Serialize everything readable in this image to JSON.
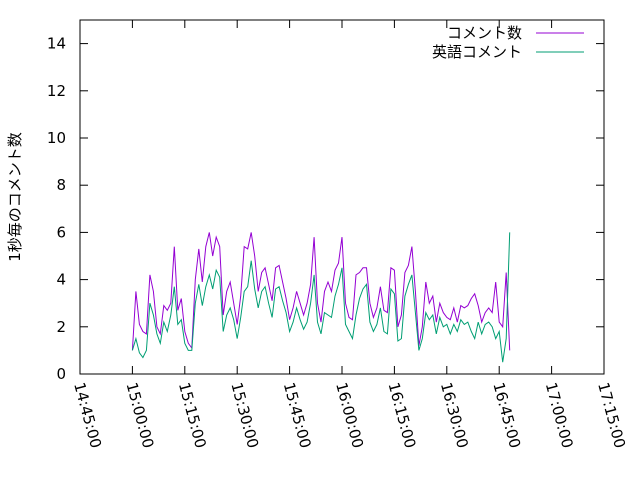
{
  "chart_data": {
    "type": "line",
    "ylabel": "1秒毎のコメント数",
    "xlabel": "",
    "ylim": [
      0,
      15
    ],
    "yticks": [
      0,
      2,
      4,
      6,
      8,
      10,
      12,
      14
    ],
    "xlim": [
      "14:45:00",
      "17:15:00"
    ],
    "xticks": [
      "14:45:00",
      "15:00:00",
      "15:15:00",
      "15:30:00",
      "15:45:00",
      "16:00:00",
      "16:15:00",
      "16:30:00",
      "16:45:00",
      "17:00:00",
      "17:15:00"
    ],
    "grid": false,
    "legend_position": "top-right",
    "series": [
      {
        "name": "コメント数",
        "color": "#9400d3",
        "points": [
          [
            "15:00:00",
            1.0
          ],
          [
            "15:01:00",
            3.5
          ],
          [
            "15:02:00",
            2.1
          ],
          [
            "15:03:00",
            1.8
          ],
          [
            "15:04:00",
            1.7
          ],
          [
            "15:05:00",
            4.2
          ],
          [
            "15:06:00",
            3.5
          ],
          [
            "15:07:00",
            2.0
          ],
          [
            "15:08:00",
            1.7
          ],
          [
            "15:09:00",
            2.9
          ],
          [
            "15:10:00",
            2.7
          ],
          [
            "15:11:00",
            3.0
          ],
          [
            "15:12:00",
            5.4
          ],
          [
            "15:13:00",
            2.7
          ],
          [
            "15:14:00",
            3.2
          ],
          [
            "15:15:00",
            1.8
          ],
          [
            "15:16:00",
            1.3
          ],
          [
            "15:17:00",
            1.1
          ],
          [
            "15:18:00",
            4.0
          ],
          [
            "15:19:00",
            5.3
          ],
          [
            "15:20:00",
            3.9
          ],
          [
            "15:21:00",
            5.4
          ],
          [
            "15:22:00",
            6.0
          ],
          [
            "15:23:00",
            5.0
          ],
          [
            "15:24:00",
            5.8
          ],
          [
            "15:25:00",
            5.4
          ],
          [
            "15:26:00",
            2.5
          ],
          [
            "15:27:00",
            3.5
          ],
          [
            "15:28:00",
            3.9
          ],
          [
            "15:29:00",
            3.0
          ],
          [
            "15:30:00",
            2.1
          ],
          [
            "15:31:00",
            3.3
          ],
          [
            "15:32:00",
            5.4
          ],
          [
            "15:33:00",
            5.3
          ],
          [
            "15:34:00",
            6.0
          ],
          [
            "15:35:00",
            5.0
          ],
          [
            "15:36:00",
            3.5
          ],
          [
            "15:37:00",
            4.3
          ],
          [
            "15:38:00",
            4.5
          ],
          [
            "15:39:00",
            3.8
          ],
          [
            "15:40:00",
            3.1
          ],
          [
            "15:41:00",
            4.5
          ],
          [
            "15:42:00",
            4.6
          ],
          [
            "15:43:00",
            3.9
          ],
          [
            "15:44:00",
            3.2
          ],
          [
            "15:45:00",
            2.3
          ],
          [
            "15:46:00",
            2.8
          ],
          [
            "15:47:00",
            3.5
          ],
          [
            "15:48:00",
            3.0
          ],
          [
            "15:49:00",
            2.5
          ],
          [
            "15:50:00",
            3.0
          ],
          [
            "15:51:00",
            3.8
          ],
          [
            "15:52:00",
            5.8
          ],
          [
            "15:53:00",
            3.0
          ],
          [
            "15:54:00",
            2.2
          ],
          [
            "15:55:00",
            3.5
          ],
          [
            "15:56:00",
            3.9
          ],
          [
            "15:57:00",
            3.5
          ],
          [
            "15:58:00",
            4.4
          ],
          [
            "15:59:00",
            4.7
          ],
          [
            "16:00:00",
            5.8
          ],
          [
            "16:01:00",
            3.0
          ],
          [
            "16:02:00",
            2.4
          ],
          [
            "16:03:00",
            2.3
          ],
          [
            "16:04:00",
            4.2
          ],
          [
            "16:05:00",
            4.3
          ],
          [
            "16:06:00",
            4.5
          ],
          [
            "16:07:00",
            4.5
          ],
          [
            "16:08:00",
            3.0
          ],
          [
            "16:09:00",
            2.4
          ],
          [
            "16:10:00",
            2.8
          ],
          [
            "16:11:00",
            3.7
          ],
          [
            "16:12:00",
            2.7
          ],
          [
            "16:13:00",
            2.6
          ],
          [
            "16:14:00",
            4.5
          ],
          [
            "16:15:00",
            4.4
          ],
          [
            "16:16:00",
            2.0
          ],
          [
            "16:17:00",
            2.5
          ],
          [
            "16:18:00",
            4.3
          ],
          [
            "16:19:00",
            4.6
          ],
          [
            "16:20:00",
            5.4
          ],
          [
            "16:21:00",
            3.5
          ],
          [
            "16:22:00",
            1.2
          ],
          [
            "16:23:00",
            2.0
          ],
          [
            "16:24:00",
            3.9
          ],
          [
            "16:25:00",
            3.0
          ],
          [
            "16:26:00",
            3.3
          ],
          [
            "16:27:00",
            2.2
          ],
          [
            "16:28:00",
            3.0
          ],
          [
            "16:29:00",
            2.6
          ],
          [
            "16:30:00",
            2.4
          ],
          [
            "16:31:00",
            2.3
          ],
          [
            "16:32:00",
            2.8
          ],
          [
            "16:33:00",
            2.2
          ],
          [
            "16:34:00",
            2.9
          ],
          [
            "16:35:00",
            2.8
          ],
          [
            "16:36:00",
            2.9
          ],
          [
            "16:37:00",
            3.2
          ],
          [
            "16:38:00",
            3.4
          ],
          [
            "16:39:00",
            2.9
          ],
          [
            "16:40:00",
            2.2
          ],
          [
            "16:41:00",
            2.6
          ],
          [
            "16:42:00",
            2.8
          ],
          [
            "16:43:00",
            2.6
          ],
          [
            "16:44:00",
            3.9
          ],
          [
            "16:45:00",
            2.2
          ],
          [
            "16:46:00",
            2.0
          ],
          [
            "16:47:00",
            4.3
          ],
          [
            "16:48:00",
            1.0
          ]
        ]
      },
      {
        "name": "英語コメント",
        "color": "#009e73",
        "points": [
          [
            "15:00:00",
            1.0
          ],
          [
            "15:01:00",
            1.5
          ],
          [
            "15:02:00",
            0.9
          ],
          [
            "15:03:00",
            0.7
          ],
          [
            "15:04:00",
            1.0
          ],
          [
            "15:05:00",
            3.0
          ],
          [
            "15:06:00",
            2.5
          ],
          [
            "15:07:00",
            1.7
          ],
          [
            "15:08:00",
            1.3
          ],
          [
            "15:09:00",
            2.2
          ],
          [
            "15:10:00",
            1.8
          ],
          [
            "15:11:00",
            2.5
          ],
          [
            "15:12:00",
            3.7
          ],
          [
            "15:13:00",
            2.1
          ],
          [
            "15:14:00",
            2.3
          ],
          [
            "15:15:00",
            1.3
          ],
          [
            "15:16:00",
            1.0
          ],
          [
            "15:17:00",
            1.0
          ],
          [
            "15:18:00",
            3.0
          ],
          [
            "15:19:00",
            3.8
          ],
          [
            "15:20:00",
            2.9
          ],
          [
            "15:21:00",
            3.7
          ],
          [
            "15:22:00",
            4.2
          ],
          [
            "15:23:00",
            3.6
          ],
          [
            "15:24:00",
            4.4
          ],
          [
            "15:25:00",
            4.1
          ],
          [
            "15:26:00",
            1.8
          ],
          [
            "15:27:00",
            2.5
          ],
          [
            "15:28:00",
            2.8
          ],
          [
            "15:29:00",
            2.3
          ],
          [
            "15:30:00",
            1.5
          ],
          [
            "15:31:00",
            2.4
          ],
          [
            "15:32:00",
            3.5
          ],
          [
            "15:33:00",
            3.7
          ],
          [
            "15:34:00",
            4.8
          ],
          [
            "15:35:00",
            3.6
          ],
          [
            "15:36:00",
            2.8
          ],
          [
            "15:37:00",
            3.5
          ],
          [
            "15:38:00",
            3.7
          ],
          [
            "15:39:00",
            3.0
          ],
          [
            "15:40:00",
            2.4
          ],
          [
            "15:41:00",
            3.6
          ],
          [
            "15:42:00",
            3.7
          ],
          [
            "15:43:00",
            3.1
          ],
          [
            "15:44:00",
            2.6
          ],
          [
            "15:45:00",
            1.8
          ],
          [
            "15:46:00",
            2.2
          ],
          [
            "15:47:00",
            2.8
          ],
          [
            "15:48:00",
            2.3
          ],
          [
            "15:49:00",
            1.9
          ],
          [
            "15:50:00",
            2.2
          ],
          [
            "15:51:00",
            3.0
          ],
          [
            "15:52:00",
            4.2
          ],
          [
            "15:53:00",
            2.2
          ],
          [
            "15:54:00",
            1.7
          ],
          [
            "15:55:00",
            2.6
          ],
          [
            "15:56:00",
            2.5
          ],
          [
            "15:57:00",
            2.4
          ],
          [
            "15:58:00",
            3.3
          ],
          [
            "15:59:00",
            3.8
          ],
          [
            "16:00:00",
            4.5
          ],
          [
            "16:01:00",
            2.1
          ],
          [
            "16:02:00",
            1.8
          ],
          [
            "16:03:00",
            1.5
          ],
          [
            "16:04:00",
            2.5
          ],
          [
            "16:05:00",
            3.2
          ],
          [
            "16:06:00",
            3.6
          ],
          [
            "16:07:00",
            3.8
          ],
          [
            "16:08:00",
            2.2
          ],
          [
            "16:09:00",
            1.8
          ],
          [
            "16:10:00",
            2.1
          ],
          [
            "16:11:00",
            2.8
          ],
          [
            "16:12:00",
            1.8
          ],
          [
            "16:13:00",
            1.7
          ],
          [
            "16:14:00",
            3.6
          ],
          [
            "16:15:00",
            3.4
          ],
          [
            "16:16:00",
            1.4
          ],
          [
            "16:17:00",
            1.5
          ],
          [
            "16:18:00",
            3.3
          ],
          [
            "16:19:00",
            3.8
          ],
          [
            "16:20:00",
            4.2
          ],
          [
            "16:21:00",
            2.6
          ],
          [
            "16:22:00",
            1.0
          ],
          [
            "16:23:00",
            1.5
          ],
          [
            "16:24:00",
            2.6
          ],
          [
            "16:25:00",
            2.3
          ],
          [
            "16:26:00",
            2.5
          ],
          [
            "16:27:00",
            1.7
          ],
          [
            "16:28:00",
            2.4
          ],
          [
            "16:29:00",
            2.0
          ],
          [
            "16:30:00",
            2.1
          ],
          [
            "16:31:00",
            1.7
          ],
          [
            "16:32:00",
            2.1
          ],
          [
            "16:33:00",
            1.8
          ],
          [
            "16:34:00",
            2.3
          ],
          [
            "16:35:00",
            2.1
          ],
          [
            "16:36:00",
            2.2
          ],
          [
            "16:37:00",
            1.8
          ],
          [
            "16:38:00",
            1.5
          ],
          [
            "16:39:00",
            2.2
          ],
          [
            "16:40:00",
            1.7
          ],
          [
            "16:41:00",
            2.1
          ],
          [
            "16:42:00",
            2.2
          ],
          [
            "16:43:00",
            2.0
          ],
          [
            "16:44:00",
            1.5
          ],
          [
            "16:45:00",
            1.8
          ],
          [
            "16:46:00",
            0.5
          ],
          [
            "16:47:00",
            1.5
          ],
          [
            "16:48:00",
            6.0
          ]
        ]
      }
    ]
  }
}
